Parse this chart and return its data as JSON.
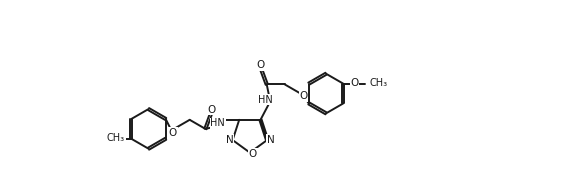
{
  "bg_color": "#ffffff",
  "line_color": "#1a1a1a",
  "line_width": 1.4,
  "font_size": 7.0,
  "figsize": [
    5.79,
    1.84
  ],
  "dpi": 100,
  "xlim": [
    0,
    100
  ],
  "ylim": [
    0,
    32
  ]
}
